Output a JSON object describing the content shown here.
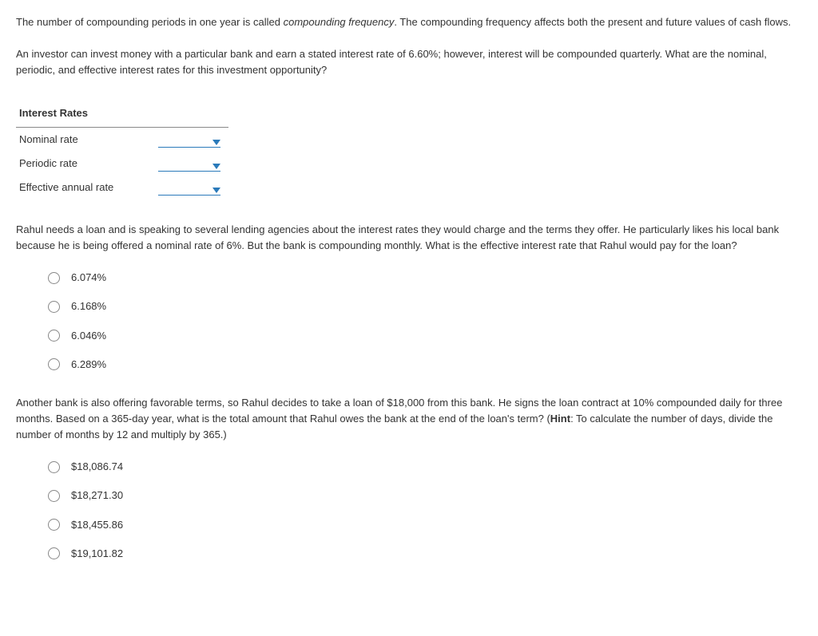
{
  "intro": {
    "p1a": "The number of compounding periods in one year is called ",
    "p1_italic": "compounding frequency",
    "p1b": ". The compounding frequency affects both the present and future values of cash flows.",
    "p2": "An investor can invest money with a particular bank and earn a stated interest rate of 6.60%; however, interest will be compounded quarterly. What are the nominal, periodic, and effective interest rates for this investment opportunity?"
  },
  "rates_table": {
    "header": "Interest Rates",
    "rows": [
      "Nominal rate",
      "Periodic rate",
      "Effective annual rate"
    ]
  },
  "q2": {
    "text": "Rahul needs a loan and is speaking to several lending agencies about the interest rates they would charge and the terms they offer. He particularly likes his local bank because he is being offered a nominal rate of 6%. But the bank is compounding monthly. What is the effective interest rate that Rahul would pay for the loan?",
    "options": [
      "6.074%",
      "6.168%",
      "6.046%",
      "6.289%"
    ]
  },
  "q3": {
    "text_a": "Another bank is also offering favorable terms, so Rahul decides to take a loan of $18,000 from this bank. He signs the loan contract at 10% compounded daily for three months. Based on a 365-day year, what is the total amount that Rahul owes the bank at the end of the loan's term? (",
    "hint_label": "Hint",
    "text_b": ": To calculate the number of days, divide the number of months by 12 and multiply by 365.)",
    "options": [
      "$18,086.74",
      "$18,271.30",
      "$18,455.86",
      "$19,101.82"
    ]
  }
}
